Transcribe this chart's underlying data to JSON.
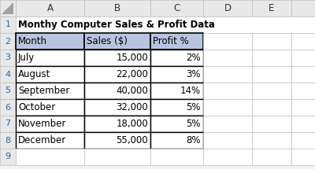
{
  "title": "Monthy Computer Sales & Profit Data",
  "col_headers": [
    "Month",
    "Sales ($)",
    "Profit %"
  ],
  "rows": [
    [
      "July",
      "15,000",
      "2%"
    ],
    [
      "August",
      "22,000",
      "3%"
    ],
    [
      "September",
      "40,000",
      "14%"
    ],
    [
      "October",
      "32,000",
      "5%"
    ],
    [
      "November",
      "18,000",
      "5%"
    ],
    [
      "December",
      "55,000",
      "8%"
    ]
  ],
  "header_bg": "#b8c4e0",
  "grid_line_color": "#000000",
  "outer_grid_color": "#c0c0c0",
  "bg_color": "#ffffff",
  "sheet_bg": "#f2f2f2",
  "title_row_bg": "#ffffff",
  "cell_text_color": "#000000",
  "row_num_bg": "#e8e8e8",
  "col_letter_bg": "#e8e8e8",
  "row_num_text": "#1f6bb0",
  "fig_width": 4.0,
  "fig_height": 2.15,
  "dpi": 100
}
